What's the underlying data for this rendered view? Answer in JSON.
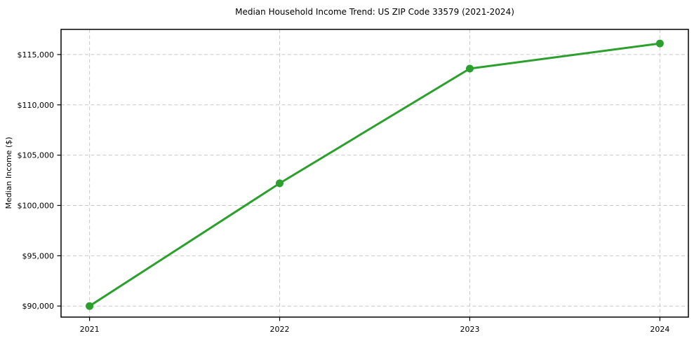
{
  "chart_data": {
    "type": "line",
    "title": "Median Household Income Trend: US ZIP Code 33579 (2021-2024)",
    "xlabel": "",
    "ylabel": "Median Income ($)",
    "x": [
      2021,
      2022,
      2023,
      2024
    ],
    "series": [
      {
        "name": "Median Household Income",
        "values": [
          90000,
          102200,
          113600,
          116100
        ]
      }
    ],
    "xtick_labels": [
      "2021",
      "2022",
      "2023",
      "2024"
    ],
    "yticks": [
      90000,
      95000,
      100000,
      105000,
      110000,
      115000
    ],
    "ytick_labels": [
      "$90,000",
      "$95,000",
      "$100,000",
      "$105,000",
      "$110,000",
      "$115,000"
    ],
    "xlim": [
      2020.85,
      2024.15
    ],
    "ylim": [
      88900,
      117500
    ],
    "grid": "on",
    "grid_style": "dashed",
    "legend": "none",
    "colors": {
      "line": "#2ca02c",
      "marker": "#2ca02c",
      "grid": "#c9c9c9",
      "spine": "#000000",
      "text": "#000000",
      "background": "#ffffff"
    }
  }
}
